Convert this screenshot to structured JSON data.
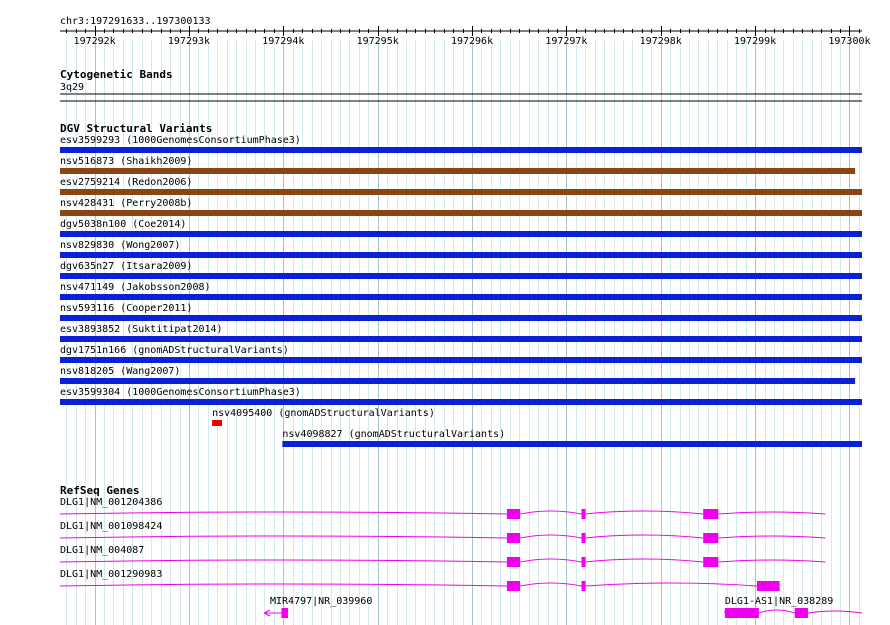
{
  "ruler": {
    "location": "chr3:197291633..197300133",
    "start": 197291633,
    "end": 197300133,
    "ticks": [
      "197292k",
      "197293k",
      "197294k",
      "197295k",
      "197296k",
      "197297k",
      "197298k",
      "197299k",
      "197300k"
    ]
  },
  "cytobands": {
    "title": "Cytogenetic Bands",
    "band_label": "3q29"
  },
  "dgv": {
    "title": "DGV Structural Variants",
    "items": [
      {
        "label": "esv3599293 (1000GenomesConsortiumPhase3)",
        "color": "#0b21d6",
        "start": 197291633,
        "end": 197300133
      },
      {
        "label": "nsv516873 (Shaikh2009)",
        "color": "#8b4513",
        "start": 197291633,
        "end": 197300060
      },
      {
        "label": "esv2759214 (Redon2006)",
        "color": "#8b4513",
        "start": 197291633,
        "end": 197300133
      },
      {
        "label": "nsv428431 (Perry2008b)",
        "color": "#8b4513",
        "start": 197291633,
        "end": 197300133
      },
      {
        "label": "dgv5038n100 (Coe2014)",
        "color": "#0b21d6",
        "start": 197291633,
        "end": 197300133
      },
      {
        "label": "nsv829830 (Wong2007)",
        "color": "#0b21d6",
        "start": 197291633,
        "end": 197300133
      },
      {
        "label": "dgv635n27 (Itsara2009)",
        "color": "#0b21d6",
        "start": 197291633,
        "end": 197300133
      },
      {
        "label": "nsv471149 (Jakobsson2008)",
        "color": "#0b21d6",
        "start": 197291633,
        "end": 197300133
      },
      {
        "label": "nsv593116 (Cooper2011)",
        "color": "#0b21d6",
        "start": 197291633,
        "end": 197300133
      },
      {
        "label": "esv3893852 (Suktitipat2014)",
        "color": "#0b21d6",
        "start": 197291633,
        "end": 197300133
      },
      {
        "label": "dgv1751n166 (gnomADStructuralVariants)",
        "color": "#0b21d6",
        "start": 197291633,
        "end": 197300133
      },
      {
        "label": "nsv818205 (Wang2007)",
        "color": "#0b21d6",
        "start": 197291633,
        "end": 197300060
      },
      {
        "label": "esv3599304 (1000GenomesConsortiumPhase3)",
        "color": "#0b21d6",
        "start": 197291633,
        "end": 197300133
      },
      {
        "label": "nsv4095400 (gnomADStructuralVariants)",
        "color": "#ee0000",
        "start": 197293245,
        "end": 197293350
      },
      {
        "label": "nsv4098827 (gnomADStructuralVariants)",
        "color": "#0b21d6",
        "start": 197293990,
        "end": 197300133
      }
    ]
  },
  "refseq": {
    "title": "RefSeq Genes",
    "color": "#ee00ee",
    "genes": [
      {
        "label": "DLG1|NM_001204386",
        "start": 197291633,
        "end": 197299745,
        "exons": [
          [
            197296370,
            197296510
          ],
          [
            197297160,
            197297200
          ],
          [
            197298450,
            197298610
          ]
        ]
      },
      {
        "label": "DLG1|NM_001098424",
        "start": 197291633,
        "end": 197299745,
        "exons": [
          [
            197296370,
            197296510
          ],
          [
            197297160,
            197297200
          ],
          [
            197298450,
            197298610
          ]
        ]
      },
      {
        "label": "DLG1|NM_004087",
        "start": 197291633,
        "end": 197299745,
        "exons": [
          [
            197296370,
            197296510
          ],
          [
            197297160,
            197297200
          ],
          [
            197298450,
            197298610
          ]
        ]
      },
      {
        "label": "DLG1|NM_001290983",
        "start": 197291633,
        "end": 197299260,
        "exons": [
          [
            197296370,
            197296510
          ],
          [
            197297160,
            197297200
          ],
          [
            197299020,
            197299260
          ]
        ]
      },
      {
        "label": "MIR4797|NR_039960",
        "start": 197293950,
        "end": 197294050,
        "exons": [
          [
            197293980,
            197294050
          ]
        ],
        "strand": "-"
      },
      {
        "label": "DLG1-AS1|NR_038289",
        "start": 197298680,
        "end": 197300133,
        "exons": [
          [
            197298680,
            197299040
          ],
          [
            197299420,
            197299560
          ]
        ]
      }
    ]
  }
}
